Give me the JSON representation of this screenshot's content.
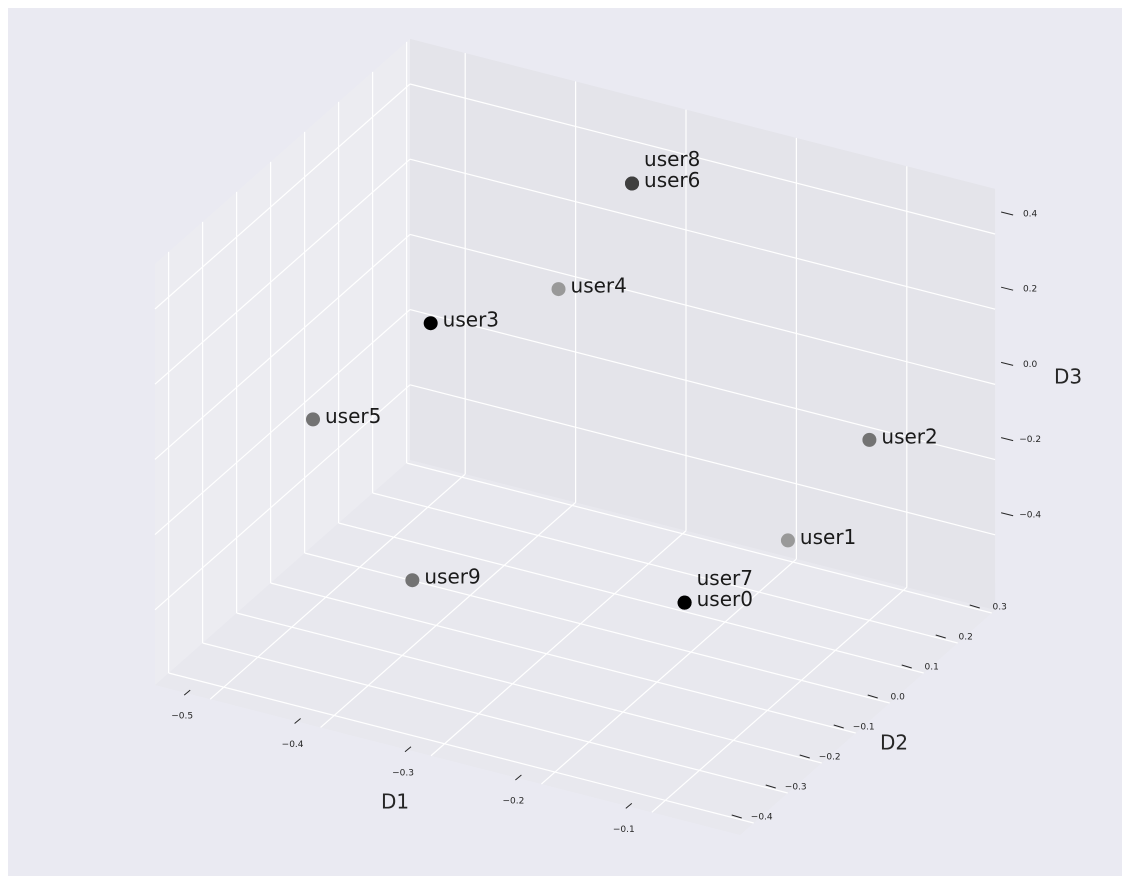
{
  "chart_data": {
    "type": "scatter3d",
    "xlabel": "D1",
    "ylabel": "D2",
    "zlabel": "D3",
    "labels": [
      "user0",
      "user1",
      "user2",
      "user3",
      "user4",
      "user5",
      "user6",
      "user7",
      "user8",
      "user9"
    ],
    "x": [
      -0.175,
      -0.143,
      -0.1,
      -0.405,
      -0.32,
      -0.45,
      -0.315,
      -0.175,
      -0.315,
      -0.36
    ],
    "y": [
      -0.1,
      0.1,
      0.2,
      -0.1,
      0.0,
      -0.3,
      0.2,
      -0.1,
      0.2,
      -0.3
    ],
    "z": [
      -0.37,
      -0.34,
      -0.12,
      0.2,
      0.275,
      0.07,
      0.4,
      -0.37,
      0.4,
      -0.29
    ],
    "colors": [
      "#000000",
      "#999999",
      "#737373",
      "#000000",
      "#999999",
      "#737373",
      "#3f3f3f",
      "#000000",
      "#3f3f3f",
      "#737373"
    ],
    "xlim": [
      -0.55,
      -0.02
    ],
    "ylim": [
      -0.44,
      0.31
    ],
    "zlim": [
      -0.6,
      0.52
    ],
    "xticks": [
      {
        "value": -0.5,
        "label": "−0.5"
      },
      {
        "value": -0.4,
        "label": "−0.4"
      },
      {
        "value": -0.3,
        "label": "−0.3"
      },
      {
        "value": -0.2,
        "label": "−0.2"
      },
      {
        "value": -0.1,
        "label": "−0.1"
      }
    ],
    "yticks": [
      {
        "value": -0.4,
        "label": "−0.4"
      },
      {
        "value": -0.3,
        "label": "−0.3"
      },
      {
        "value": -0.2,
        "label": "−0.2"
      },
      {
        "value": -0.1,
        "label": "−0.1"
      },
      {
        "value": 0.0,
        "label": "0.0"
      },
      0.1,
      0.2,
      0.3
    ],
    "zticks": [
      {
        "value": -0.4,
        "label": "−0.4"
      },
      {
        "value": -0.2,
        "label": "−0.2"
      },
      {
        "value": 0.0,
        "label": "0.0"
      },
      0.2,
      0.4
    ],
    "grid": true
  }
}
